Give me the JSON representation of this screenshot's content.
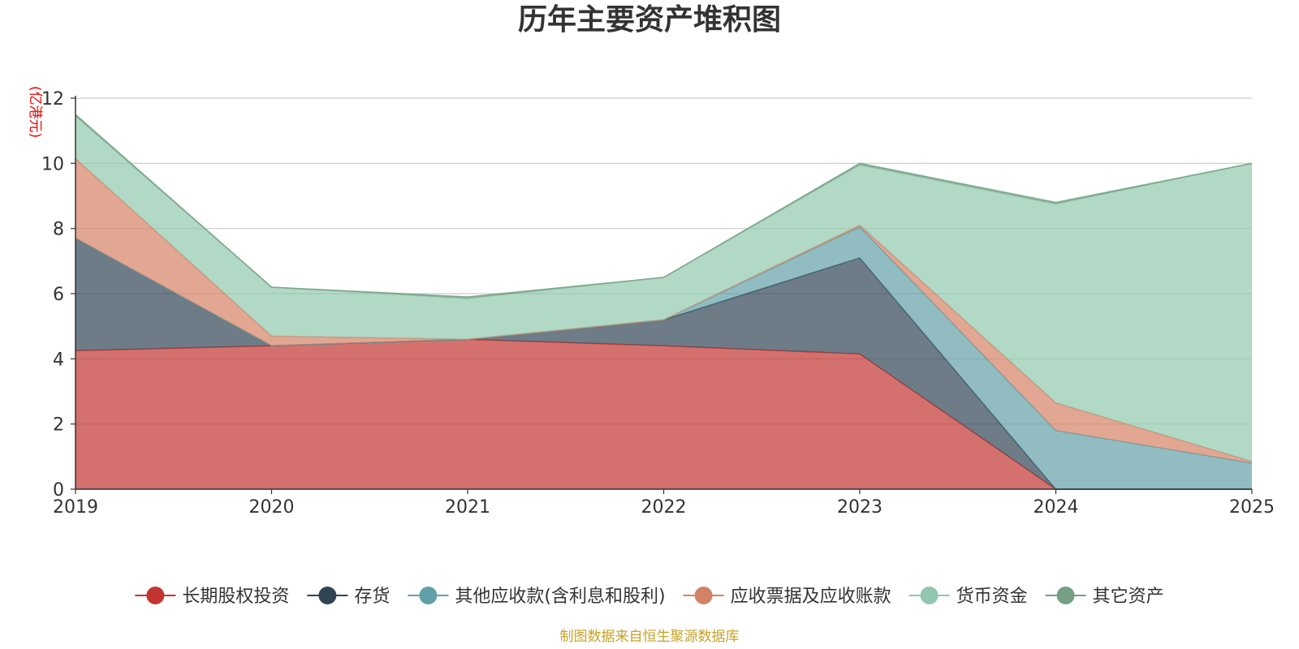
{
  "chart_data": {
    "type": "area",
    "stacked": true,
    "title": "历年主要资产堆积图",
    "unit_label": "(亿港元)",
    "x": [
      "2019",
      "2020",
      "2021",
      "2022",
      "2023",
      "2024",
      "2025"
    ],
    "ylim": [
      0,
      12
    ],
    "yticks": [
      0,
      2,
      4,
      6,
      8,
      10,
      12
    ],
    "grid": true,
    "legend_position": "bottom",
    "series": [
      {
        "name": "长期股权投资",
        "color": "#c23531",
        "values": [
          4.25,
          4.4,
          4.6,
          4.4,
          4.15,
          0.0,
          0.0
        ]
      },
      {
        "name": "存货",
        "color": "#2f4554",
        "values": [
          3.45,
          0.0,
          0.0,
          0.8,
          2.95,
          0.0,
          0.0
        ]
      },
      {
        "name": "其他应收款(含利息和股利)",
        "color": "#61a0a8",
        "values": [
          0.0,
          0.0,
          0.0,
          0.0,
          0.95,
          1.8,
          0.8
        ]
      },
      {
        "name": "应收票据及应收账款",
        "color": "#d48265",
        "values": [
          2.45,
          0.3,
          0.0,
          0.0,
          0.05,
          0.85,
          0.05
        ]
      },
      {
        "name": "货币资金",
        "color": "#91c7ae",
        "values": [
          1.3,
          1.5,
          1.25,
          1.3,
          1.85,
          6.1,
          9.15
        ]
      },
      {
        "name": "其它资产",
        "color": "#749f83",
        "values": [
          0.05,
          0.0,
          0.05,
          0.0,
          0.05,
          0.05,
          0.0
        ]
      }
    ],
    "source_note": "制图数据来自恒生聚源数据库"
  }
}
